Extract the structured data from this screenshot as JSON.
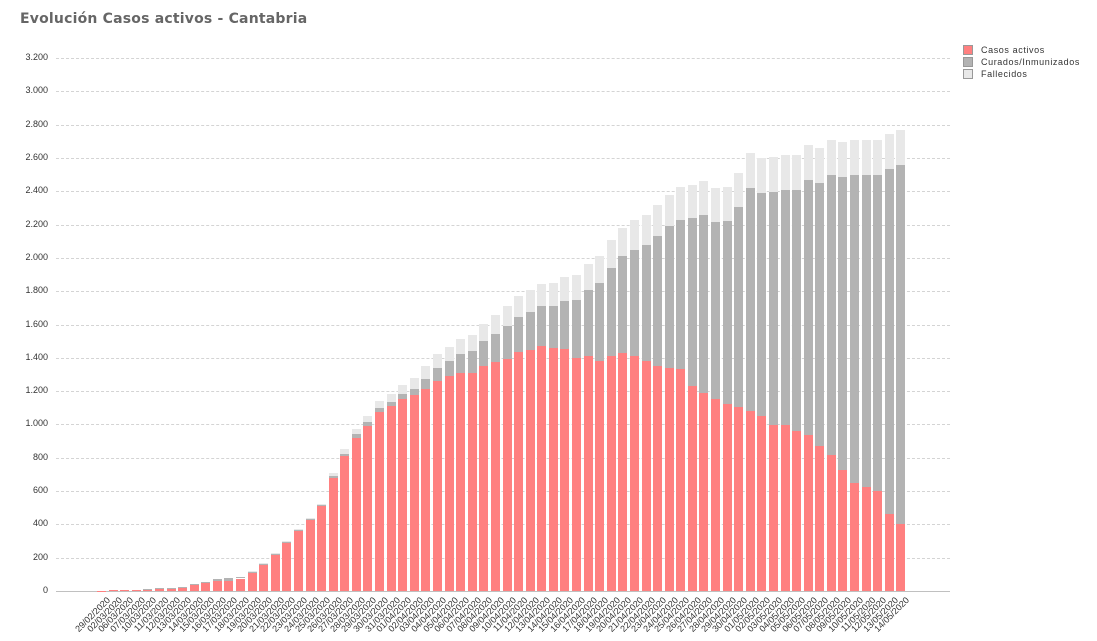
{
  "title": "Evolución Casos activos - Cantabria",
  "legend": [
    {
      "label": "Casos activos",
      "color": "#ff8080"
    },
    {
      "label": "Curados/Inmunizados",
      "color": "#b3b3b3"
    },
    {
      "label": "Fallecidos",
      "color": "#e8e8e8"
    }
  ],
  "chart_data": {
    "type": "bar",
    "stacked": true,
    "title": "Evolución Casos activos - Cantabria",
    "xlabel": "",
    "ylabel": "",
    "ylim": [
      0,
      3200
    ],
    "yticks": [
      "0",
      "200",
      "400",
      "600",
      "800",
      "1.000",
      "1.200",
      "1.400",
      "1.600",
      "1.800",
      "2.000",
      "2.200",
      "2.400",
      "2.600",
      "2.800",
      "3.000",
      "3.200"
    ],
    "grid": true,
    "legend_position": "top-right",
    "categories": [
      "29/02/2020",
      "02/03/2020",
      "06/03/2020",
      "07/03/2020",
      "10/03/2020",
      "11/03/2020",
      "12/03/2020",
      "13/03/2020",
      "14/03/2020",
      "15/03/2020",
      "16/03/2020",
      "17/03/2020",
      "18/03/2020",
      "19/03/2020",
      "20/03/2020",
      "21/03/2020",
      "22/03/2020",
      "23/03/2020",
      "24/03/2020",
      "25/03/2020",
      "26/03/2020",
      "27/03/2020",
      "28/03/2020",
      "29/03/2020",
      "30/03/2020",
      "31/03/2020",
      "01/04/2020",
      "02/04/2020",
      "03/04/2020",
      "04/04/2020",
      "05/04/2020",
      "06/04/2020",
      "07/04/2020",
      "08/04/2020",
      "09/04/2020",
      "10/04/2020",
      "11/04/2020",
      "12/04/2020",
      "13/04/2020",
      "14/04/2020",
      "15/04/2020",
      "16/04/2020",
      "17/04/2020",
      "18/04/2020",
      "19/04/2020",
      "20/04/2020",
      "21/04/2020",
      "22/04/2020",
      "23/04/2020",
      "24/04/2020",
      "25/04/2020",
      "26/04/2020",
      "27/04/2020",
      "28/04/2020",
      "29/04/2020",
      "30/04/2020",
      "01/05/2020",
      "02/05/2020",
      "03/05/2020",
      "04/05/2020",
      "05/05/2020",
      "06/05/2020",
      "07/05/2020",
      "08/05/2020",
      "09/05/2020",
      "10/05/2020",
      "11/05/2020",
      "12/05/2020",
      "13/05/2020",
      "14/05/2020"
    ],
    "series": [
      {
        "name": "Casos activos",
        "color": "#ff8080",
        "values": [
          1,
          5,
          8,
          8,
          12,
          10,
          10,
          20,
          35,
          50,
          60,
          62,
          75,
          110,
          160,
          220,
          290,
          360,
          425,
          510,
          680,
          810,
          920,
          990,
          1075,
          1110,
          1150,
          1175,
          1215,
          1260,
          1290,
          1310,
          1310,
          1350,
          1375,
          1390,
          1435,
          1445,
          1470,
          1460,
          1450,
          1400,
          1410,
          1380,
          1410,
          1430,
          1410,
          1380,
          1350,
          1340,
          1330,
          1230,
          1190,
          1155,
          1120,
          1105,
          1080,
          1050,
          995,
          995,
          960,
          935,
          870,
          815,
          725,
          650,
          625,
          600,
          465,
          405
        ]
      },
      {
        "name": "Curados/Inmunizados",
        "color": "#b3b3b3",
        "values": [
          0,
          0,
          0,
          0,
          3,
          8,
          8,
          5,
          5,
          5,
          10,
          15,
          12,
          8,
          5,
          5,
          5,
          5,
          5,
          5,
          10,
          15,
          20,
          25,
          25,
          25,
          30,
          40,
          60,
          80,
          90,
          110,
          130,
          150,
          170,
          200,
          210,
          230,
          240,
          250,
          290,
          350,
          400,
          470,
          530,
          580,
          640,
          700,
          780,
          850,
          900,
          1010,
          1070,
          1060,
          1100,
          1200,
          1340,
          1340,
          1400,
          1410,
          1450,
          1530,
          1580,
          1680,
          1760,
          1850,
          1870,
          1900,
          2070,
          2150
        ]
      },
      {
        "name": "Fallecidos",
        "color": "#e8e8e8",
        "values": [
          0,
          0,
          0,
          0,
          0,
          0,
          0,
          0,
          0,
          0,
          0,
          0,
          0,
          3,
          3,
          3,
          5,
          5,
          10,
          10,
          20,
          30,
          30,
          35,
          40,
          45,
          55,
          65,
          75,
          80,
          85,
          90,
          95,
          105,
          115,
          120,
          125,
          130,
          135,
          140,
          145,
          150,
          155,
          160,
          165,
          170,
          175,
          180,
          185,
          190,
          195,
          200,
          200,
          205,
          205,
          205,
          210,
          210,
          210,
          210,
          210,
          210,
          210,
          210,
          210,
          210,
          210,
          210,
          210,
          210
        ]
      }
    ]
  }
}
